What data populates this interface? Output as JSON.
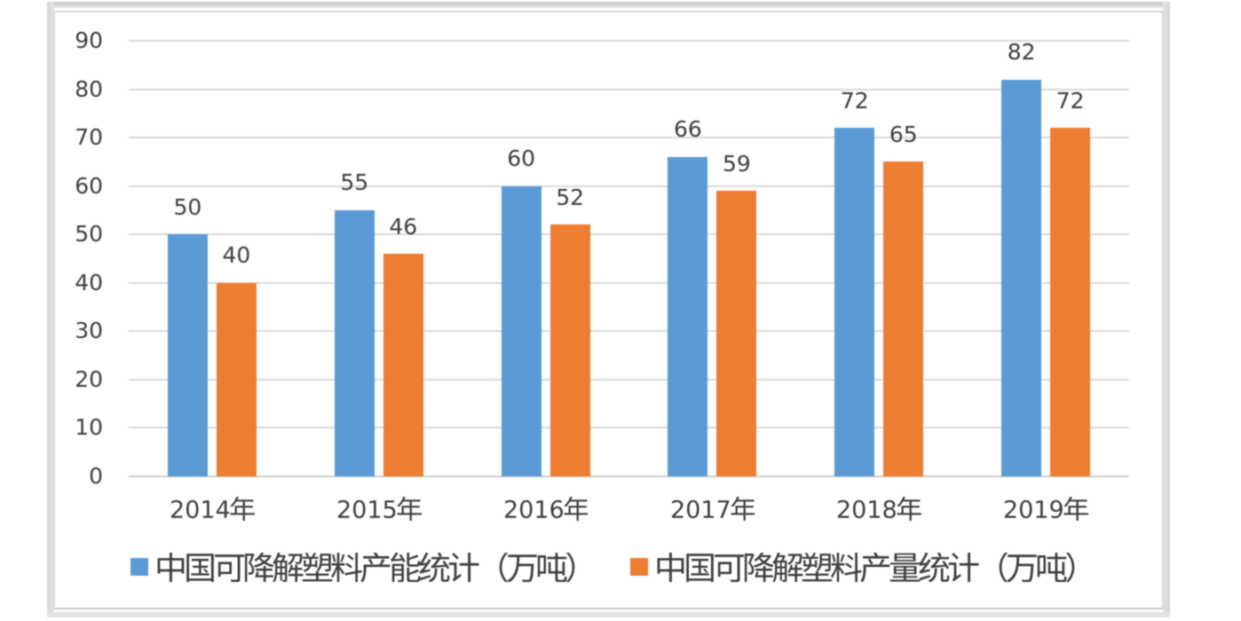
{
  "chart_data": {
    "type": "bar",
    "title": "",
    "categories": [
      "2014年",
      "2015年",
      "2016年",
      "2017年",
      "2018年",
      "2019年"
    ],
    "series": [
      {
        "name": "中国可降解塑料产能统计（万吨）",
        "color": "#5B9BD5",
        "values": [
          50,
          55,
          60,
          66,
          72,
          82
        ]
      },
      {
        "name": "中国可降解塑料产量统计（万吨）",
        "color": "#ED7D31",
        "values": [
          40,
          46,
          52,
          59,
          65,
          72
        ]
      }
    ],
    "xlabel": "",
    "ylabel": "",
    "ylim": [
      0,
      90
    ],
    "ytick_interval": 10,
    "yticks": [
      90,
      80,
      70,
      60,
      50,
      40,
      30,
      20,
      10,
      0
    ],
    "grid": true,
    "data_labels": true,
    "legend_position": "bottom",
    "colors": {
      "gridline": "#D9D9D9",
      "axis_line": "#CDCDCD",
      "text": "#3F3F3F"
    }
  }
}
